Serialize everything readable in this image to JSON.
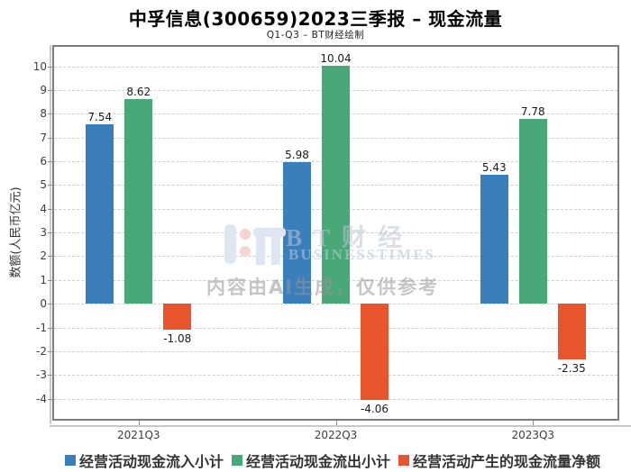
{
  "chart_data": {
    "type": "bar",
    "title": "中孚信息(300659)2023三季报 – 现金流量",
    "subtitle": "Q1-Q3 – BT财经绘制",
    "categories": [
      "2021Q3",
      "2022Q3",
      "2023Q3"
    ],
    "series": [
      {
        "name": "经营活动现金流入小计",
        "color": "#3a7ebb",
        "values": [
          7.54,
          5.98,
          5.43
        ]
      },
      {
        "name": "经营活动现金流出小计",
        "color": "#49a877",
        "values": [
          8.62,
          10.04,
          7.78
        ]
      },
      {
        "name": "经营活动产生的现金流量净额",
        "color": "#e8542b",
        "values": [
          -1.08,
          -4.06,
          -2.35
        ]
      }
    ],
    "xlabel": "",
    "ylabel": "数额(人民币亿元)",
    "yticks": [
      -4,
      -3,
      -2,
      -1,
      0,
      1,
      2,
      3,
      4,
      5,
      6,
      7,
      8,
      9,
      10
    ],
    "ylim": [
      -4.85,
      10.82
    ],
    "grid": true,
    "grid_style": "dashed",
    "legend_position": "bottom"
  },
  "watermark": {
    "brand": "BT财经",
    "brand_sub": "BUSINESSTIMES",
    "disclaimer": "内容由AI生成，仅供参考"
  },
  "colors": {
    "bar_inflow": "#3a7ebb",
    "bar_outflow": "#49a877",
    "bar_net": "#e8542b",
    "frame": "#7d7d7d",
    "gridline": "#cfcfcf",
    "tick_text": "#3d3d3d"
  }
}
